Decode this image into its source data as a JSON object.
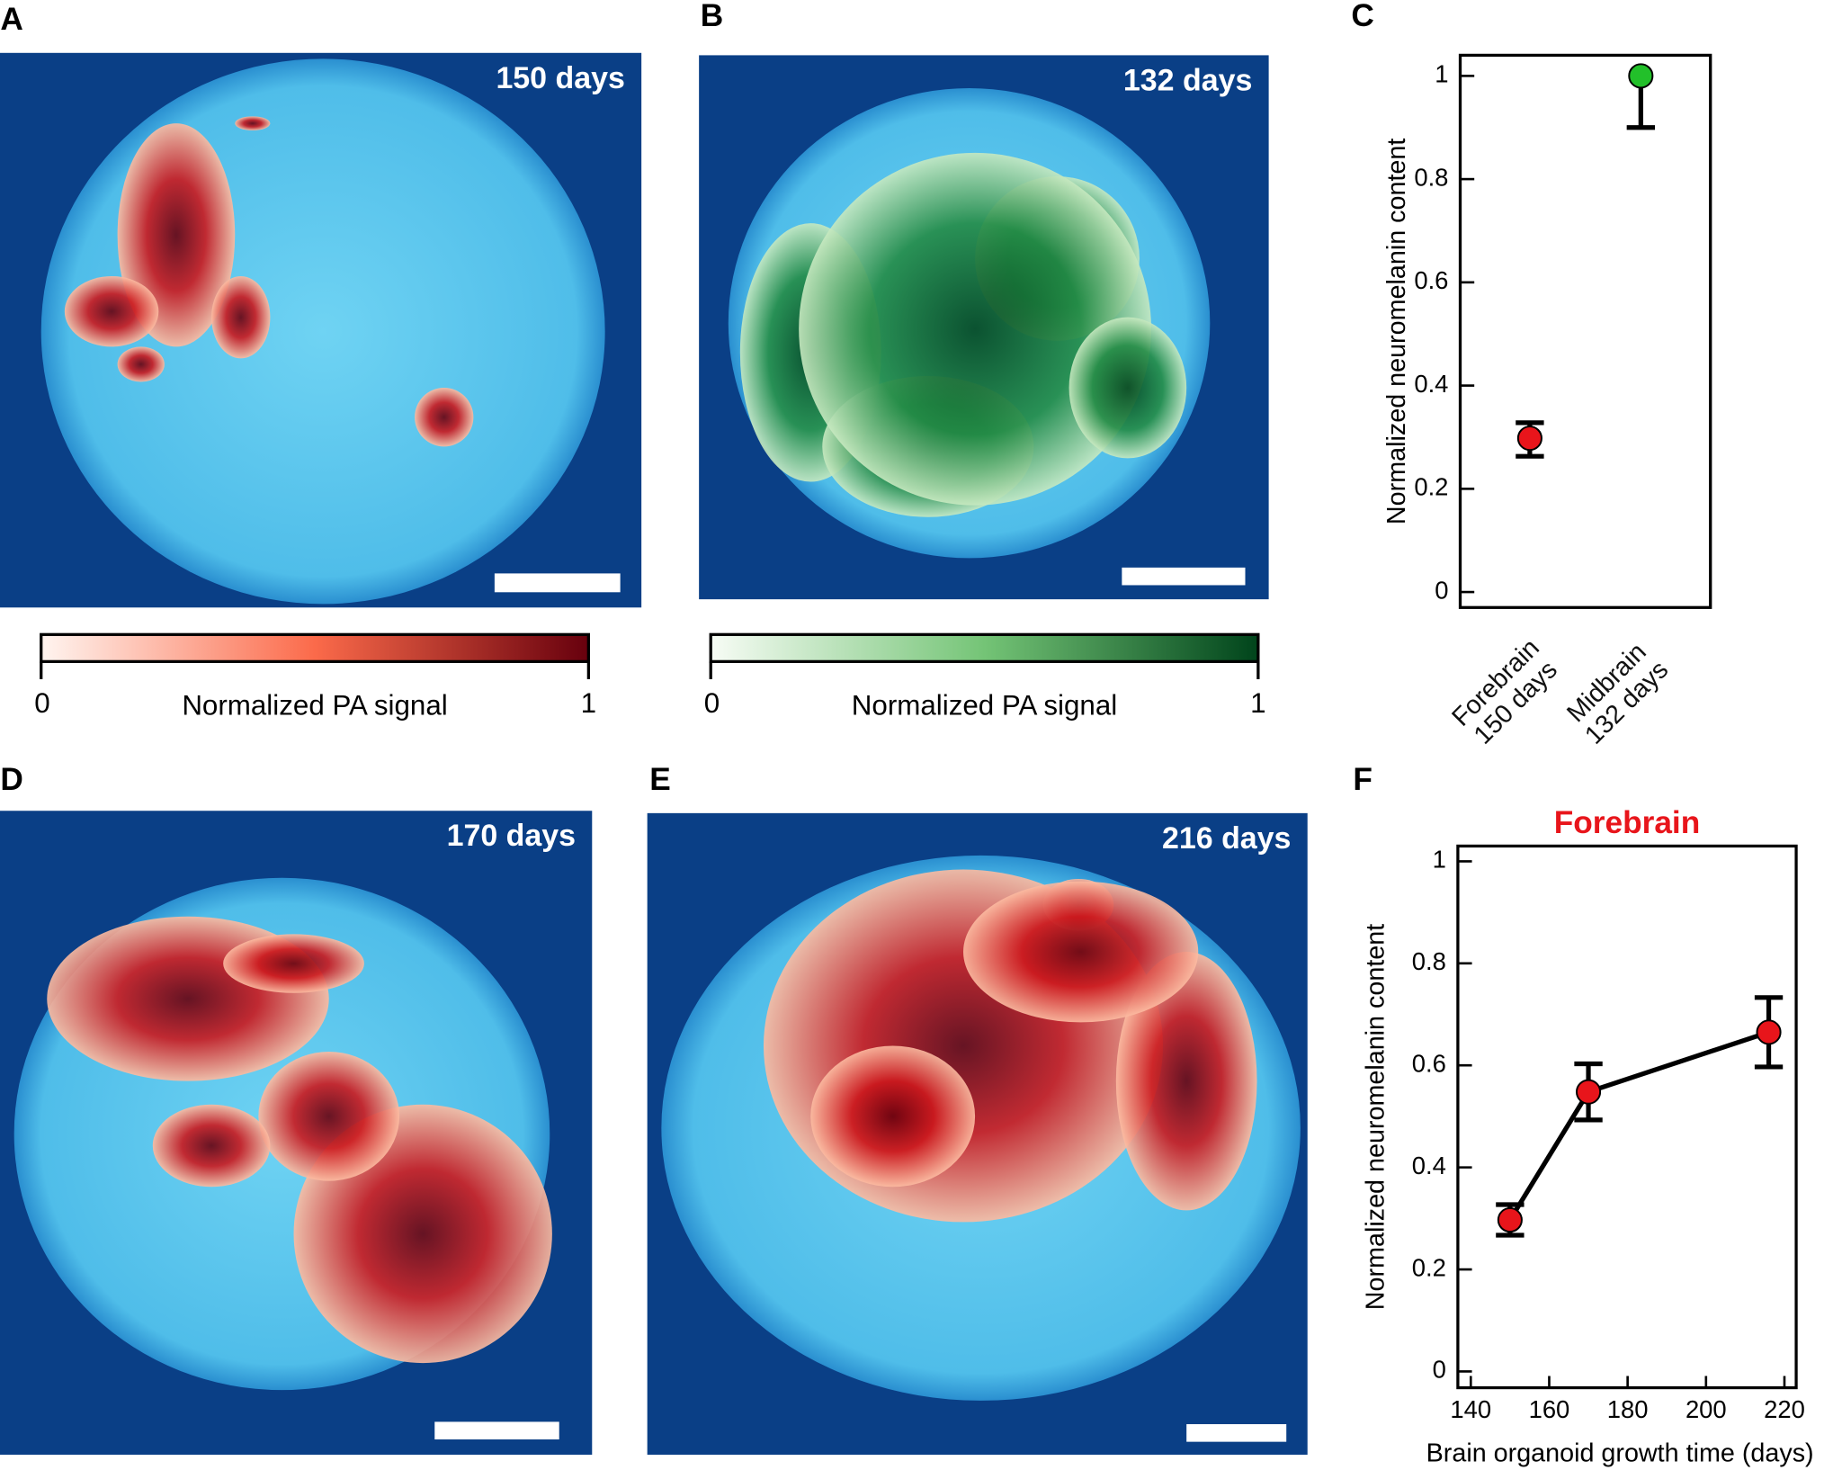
{
  "panels": [
    {
      "label": "A",
      "caption": "150 days"
    },
    {
      "label": "B",
      "caption": "132 days"
    },
    {
      "label": "C"
    },
    {
      "label": "D",
      "caption": "170 days"
    },
    {
      "label": "E",
      "caption": "216 days"
    },
    {
      "label": "F"
    }
  ],
  "colorbars": [
    {
      "min": 0,
      "max": 1,
      "label": "Normalized PA signal",
      "colors": [
        "#fff5f0",
        "#fb6a4a",
        "#67000d"
      ]
    },
    {
      "min": 0,
      "max": 1,
      "label": "Normalized PA signal",
      "colors": [
        "#f7fcf5",
        "#74c476",
        "#00441b"
      ]
    }
  ],
  "chart_data": [
    {
      "type": "scatter",
      "categories": [
        "Forebrain\n150 days",
        "Midbrain\n132 days"
      ],
      "values": [
        0.298,
        1.0
      ],
      "error_low": [
        0.035,
        0.1
      ],
      "error_high": [
        0.03,
        null
      ],
      "colors": [
        "#e8151b",
        "#22c02a"
      ],
      "ylabel": "Normalized neuromelanin content",
      "ylim": [
        -0.03,
        1.04
      ],
      "yticks": [
        0,
        0.2,
        0.4,
        0.6,
        0.8,
        1
      ]
    },
    {
      "type": "line",
      "title": "Forebrain",
      "title_color": "#e8151b",
      "x": [
        150,
        170,
        216
      ],
      "values": [
        0.297,
        0.548,
        0.665
      ],
      "error_low": [
        0.03,
        0.055,
        0.068
      ],
      "error_high": [
        0.03,
        0.055,
        0.068
      ],
      "color": "#e8151b",
      "line_color": "#000000",
      "xlabel": "Brain organoid growth time (days)",
      "ylabel": "Normalized neuromelanin content",
      "xlim": [
        136.7,
        223
      ],
      "xticks": [
        140,
        160,
        180,
        200,
        220
      ],
      "ylim": [
        -0.032,
        1.03
      ],
      "yticks": [
        0,
        0.2,
        0.4,
        0.6,
        0.8,
        1
      ]
    }
  ]
}
